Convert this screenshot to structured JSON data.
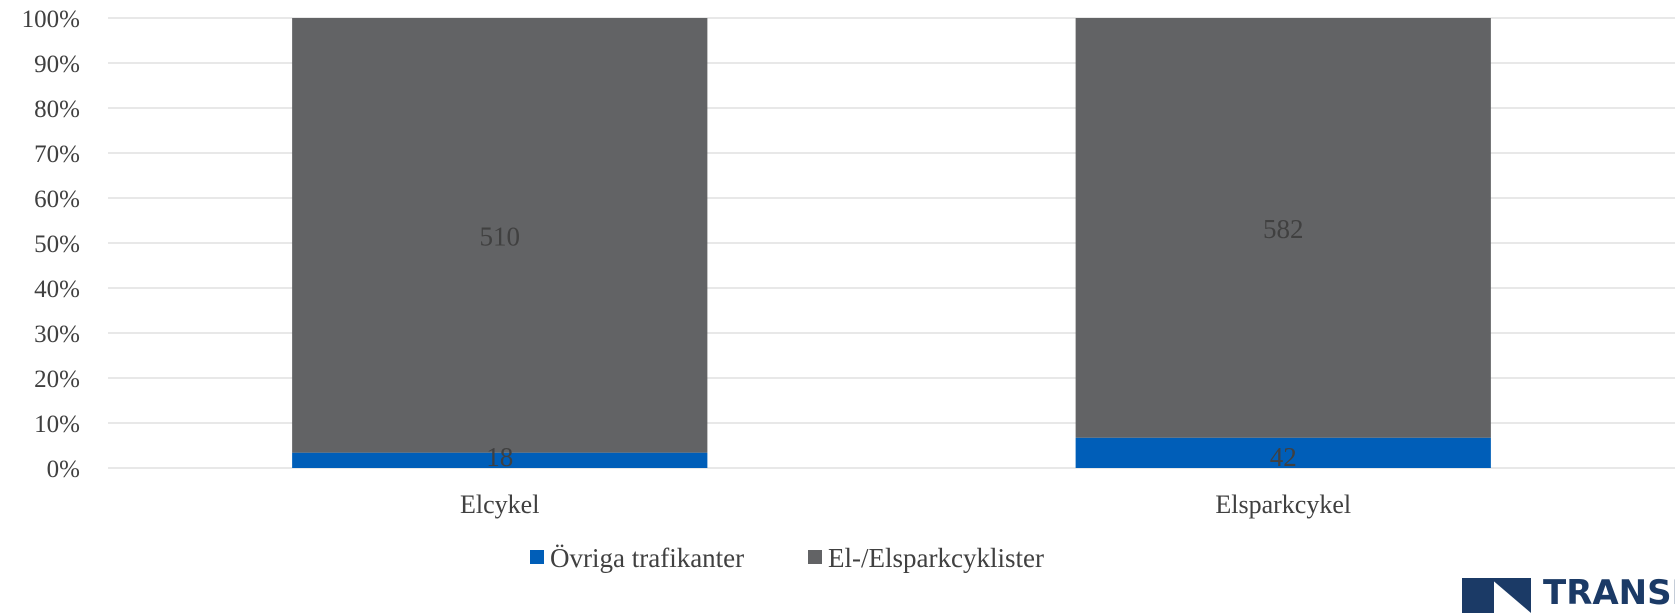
{
  "chart_data": {
    "type": "bar",
    "stacked": "percent",
    "categories": [
      "Elcykel",
      "Elsparkcykel"
    ],
    "series": [
      {
        "name": "Övriga trafikanter",
        "values": [
          18,
          42
        ],
        "color": "#005EB8"
      },
      {
        "name": "El-/Elsparkcyklister",
        "values": [
          510,
          582
        ],
        "color": "#626365"
      }
    ],
    "yticks": [
      "0%",
      "10%",
      "20%",
      "30%",
      "40%",
      "50%",
      "60%",
      "70%",
      "80%",
      "90%",
      "100%"
    ],
    "ylim": [
      0,
      100
    ],
    "grid": true,
    "legend_position": "bottom"
  },
  "logo": {
    "text": "TRANSPORTSTYRELSEN",
    "color": "#1b3a66"
  }
}
